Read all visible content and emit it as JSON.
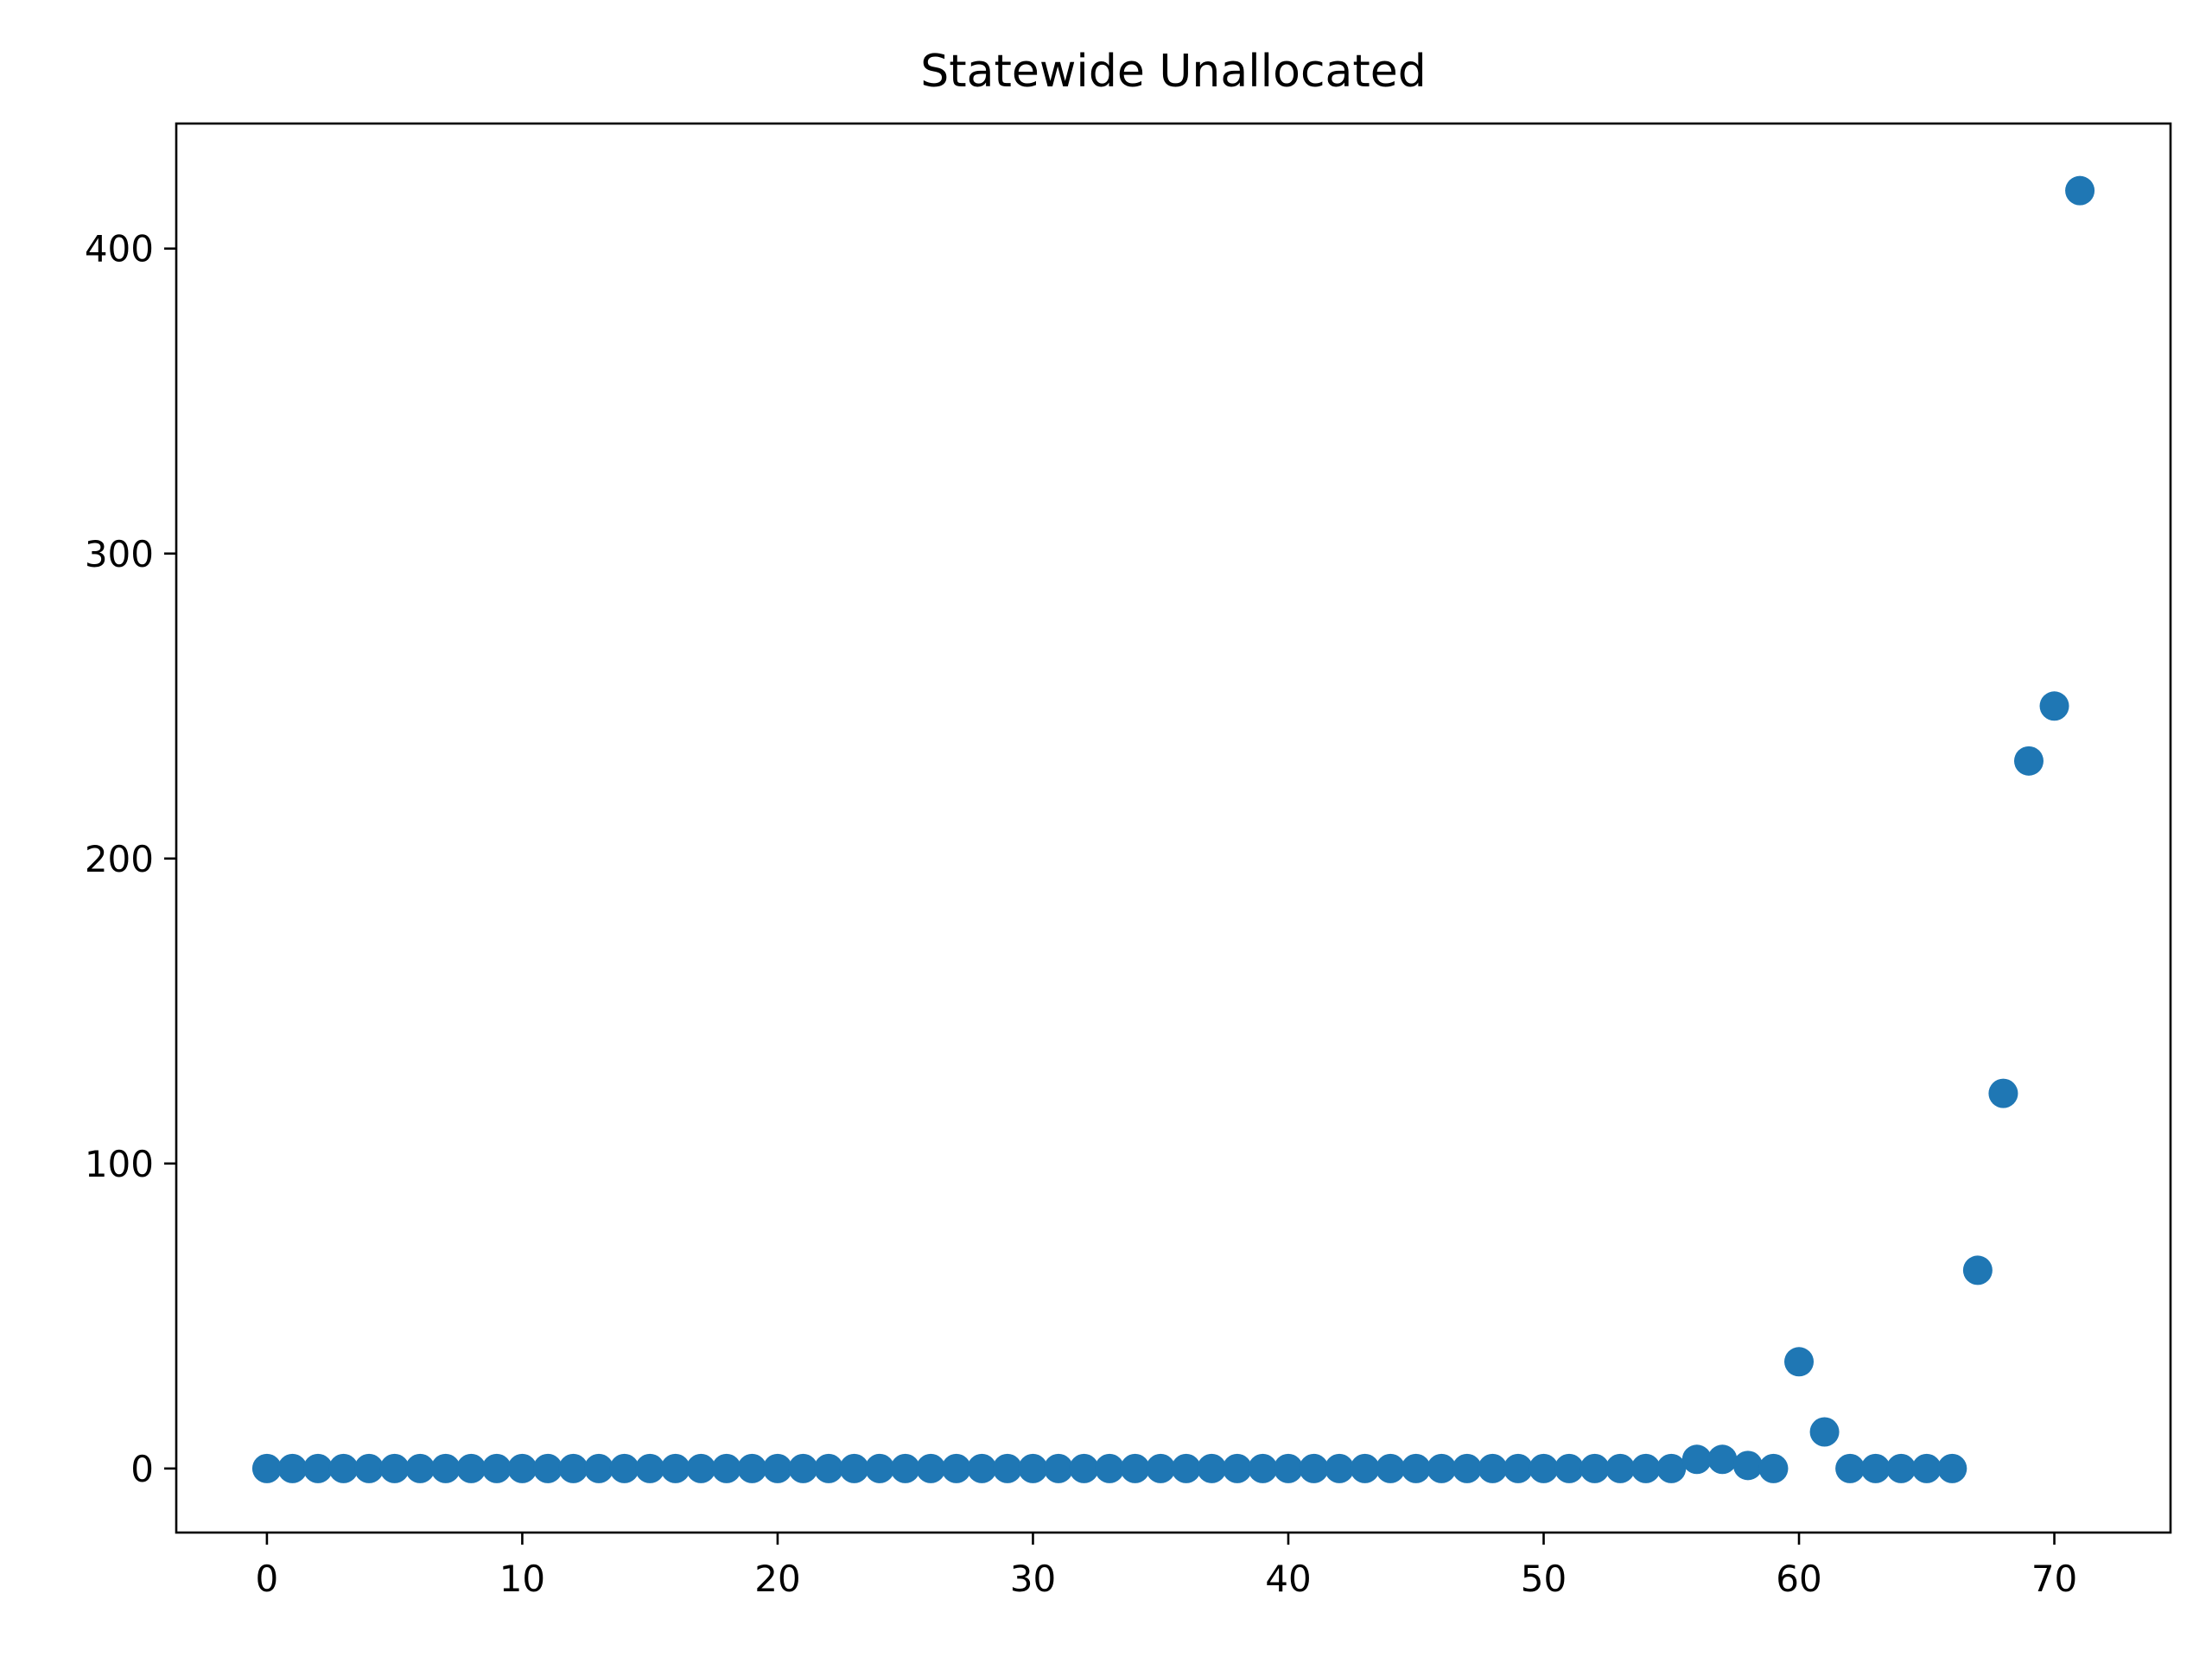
{
  "chart_data": {
    "type": "scatter",
    "title": "Statewide Unallocated",
    "xlabel": "",
    "ylabel": "",
    "xlim": [
      -3.55,
      74.55
    ],
    "ylim": [
      -21,
      441
    ],
    "xticks": [
      0,
      10,
      20,
      30,
      40,
      50,
      60,
      70
    ],
    "yticks": [
      0,
      100,
      200,
      300,
      400
    ],
    "xtick_labels": [
      "0",
      "10",
      "20",
      "30",
      "40",
      "50",
      "60",
      "70"
    ],
    "ytick_labels": [
      "0",
      "100",
      "200",
      "300",
      "400"
    ],
    "grid": false,
    "legend": "none",
    "marker_color": "#1f77b4",
    "series": [
      {
        "x": [
          0,
          1,
          2,
          3,
          4,
          5,
          6,
          7,
          8,
          9,
          10,
          11,
          12,
          13,
          14,
          15,
          16,
          17,
          18,
          19,
          20,
          21,
          22,
          23,
          24,
          25,
          26,
          27,
          28,
          29,
          30,
          31,
          32,
          33,
          34,
          35,
          36,
          37,
          38,
          39,
          40,
          41,
          42,
          43,
          44,
          45,
          46,
          47,
          48,
          49,
          50,
          51,
          52,
          53,
          54,
          55,
          56,
          57,
          58,
          59,
          60,
          61,
          62,
          63,
          64,
          65,
          66,
          67,
          68,
          69,
          70,
          71
        ],
        "y": [
          0,
          0,
          0,
          0,
          0,
          0,
          0,
          0,
          0,
          0,
          0,
          0,
          0,
          0,
          0,
          0,
          0,
          0,
          0,
          0,
          0,
          0,
          0,
          0,
          0,
          0,
          0,
          0,
          0,
          0,
          0,
          0,
          0,
          0,
          0,
          0,
          0,
          0,
          0,
          0,
          0,
          0,
          0,
          0,
          0,
          0,
          0,
          0,
          0,
          0,
          0,
          0,
          0,
          0,
          0,
          0,
          3,
          3,
          1,
          0,
          35,
          12,
          0,
          0,
          0,
          0,
          0,
          65,
          123,
          232,
          250,
          419
        ]
      }
    ]
  }
}
